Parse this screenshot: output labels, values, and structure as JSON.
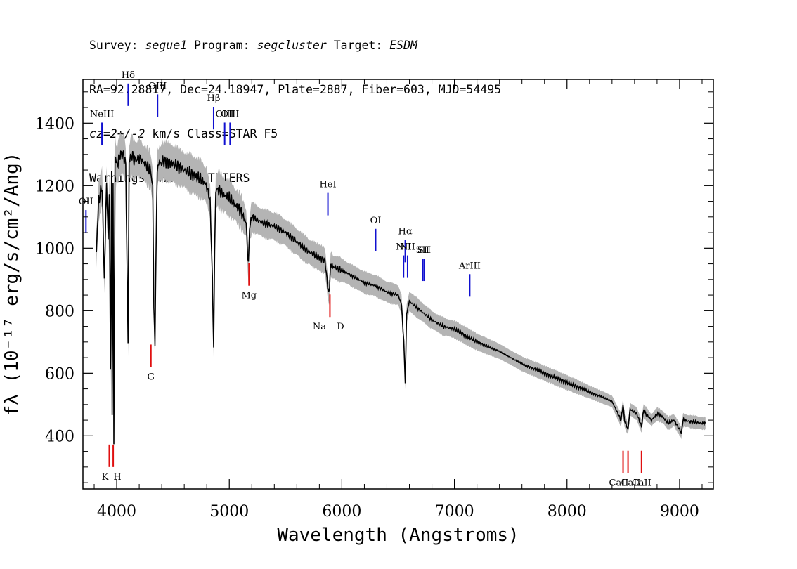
{
  "header": {
    "survey_label": "Survey:",
    "survey": "segue1",
    "program_label": "Program:",
    "program": "segcluster",
    "target_label": "Target:",
    "target": "ESDM",
    "line2": "RA=92.28817, Dec=24.18947, Plate=2887, Fiber=603, MJD=54495",
    "line3_italic": "cz=2+/-2",
    "line3_rest": " km/s Class=STAR F5",
    "line4": "Warnings: MANY_OUTLIERS"
  },
  "chart_data": {
    "type": "line",
    "xlabel": "Wavelength (Angstroms)",
    "ylabel": "fλ (10⁻¹⁷ erg/s/cm²/Ang)",
    "xlim": [
      3700,
      9300
    ],
    "ylim": [
      230,
      1540
    ],
    "x_ticks": [
      4000,
      5000,
      6000,
      7000,
      8000,
      9000
    ],
    "y_ticks": [
      400,
      600,
      800,
      1000,
      1200,
      1400
    ],
    "grid": false,
    "colors": {
      "spectrum": "#000000",
      "error_band": "#b4b4b4",
      "emission_lines": "#1010d0",
      "absorption_lines": "#e01010"
    },
    "series": [
      {
        "x": [
          3820,
          3840,
          3870,
          3890,
          3910,
          3925,
          3935,
          3945,
          3955,
          3960,
          3968,
          3975,
          3985,
          4000,
          4030,
          4060,
          4080,
          4090,
          4101,
          4110,
          4130,
          4160,
          4200,
          4250,
          4300,
          4320,
          4330,
          4340,
          4350,
          4360,
          4380,
          4420,
          4500,
          4600,
          4700,
          4750,
          4800,
          4830,
          4850,
          4861,
          4870,
          4880,
          4900,
          4950,
          5000,
          5050,
          5100,
          5150,
          5170,
          5180,
          5200,
          5300,
          5400,
          5500,
          5600,
          5700,
          5800,
          5850,
          5880,
          5890,
          5900,
          5920,
          6000,
          6100,
          6200,
          6300,
          6400,
          6500,
          6530,
          6550,
          6563,
          6575,
          6600,
          6700,
          6800,
          6900,
          7000,
          7200,
          7400,
          7600,
          7800,
          8000,
          8200,
          8400,
          8480,
          8498,
          8510,
          8542,
          8560,
          8620,
          8662,
          8680,
          8750,
          8800,
          8850,
          8900,
          8950,
          9000,
          9015,
          9030,
          9100,
          9200,
          9230
        ],
        "values": [
          1000,
          1150,
          1200,
          900,
          1210,
          1050,
          1180,
          600,
          1230,
          470,
          1200,
          380,
          1300,
          1260,
          1300,
          1300,
          1270,
          1000,
          690,
          1270,
          1300,
          1280,
          1290,
          1270,
          1250,
          1200,
          800,
          680,
          1010,
          1260,
          1270,
          1280,
          1270,
          1250,
          1230,
          1220,
          1200,
          1150,
          900,
          690,
          1000,
          1180,
          1190,
          1170,
          1160,
          1140,
          1120,
          1080,
          940,
          1060,
          1100,
          1080,
          1070,
          1050,
          1020,
          990,
          970,
          960,
          860,
          860,
          950,
          940,
          930,
          910,
          890,
          880,
          860,
          850,
          820,
          700,
          570,
          790,
          830,
          800,
          770,
          750,
          740,
          700,
          670,
          630,
          600,
          570,
          540,
          510,
          450,
          500,
          450,
          420,
          485,
          470,
          430,
          480,
          450,
          470,
          460,
          440,
          450,
          420,
          410,
          450,
          445,
          440,
          440
        ],
        "err_lo": [
          950,
          1100,
          1150,
          860,
          1160,
          1005,
          1130,
          570,
          1180,
          450,
          1150,
          365,
          1245,
          1210,
          1245,
          1245,
          1220,
          960,
          660,
          1220,
          1245,
          1230,
          1240,
          1220,
          1200,
          1150,
          770,
          650,
          965,
          1210,
          1220,
          1230,
          1220,
          1200,
          1180,
          1170,
          1150,
          1105,
          865,
          660,
          960,
          1130,
          1140,
          1120,
          1115,
          1095,
          1075,
          1040,
          905,
          1020,
          1058,
          1040,
          1030,
          1012,
          982,
          953,
          935,
          925,
          830,
          830,
          916,
          906,
          897,
          877,
          857,
          848,
          829,
          820,
          790,
          675,
          550,
          762,
          800,
          772,
          744,
          724,
          715,
          676,
          647,
          608,
          579,
          550,
          522,
          492,
          432,
          482,
          432,
          402,
          466,
          452,
          413,
          461,
          432,
          452,
          442,
          422,
          432,
          403,
          393,
          432,
          427,
          422,
          422
        ],
        "err_hi": [
          1050,
          1200,
          1250,
          940,
          1260,
          1095,
          1230,
          630,
          1280,
          490,
          1250,
          395,
          1355,
          1310,
          1355,
          1355,
          1320,
          1040,
          720,
          1320,
          1355,
          1330,
          1340,
          1320,
          1300,
          1250,
          830,
          710,
          1055,
          1310,
          1320,
          1330,
          1320,
          1300,
          1280,
          1270,
          1250,
          1195,
          935,
          720,
          1040,
          1230,
          1240,
          1220,
          1205,
          1185,
          1165,
          1120,
          975,
          1100,
          1142,
          1120,
          1110,
          1088,
          1058,
          1027,
          1005,
          995,
          890,
          890,
          984,
          974,
          963,
          943,
          923,
          912,
          891,
          880,
          850,
          725,
          590,
          818,
          860,
          828,
          796,
          776,
          765,
          724,
          693,
          652,
          621,
          590,
          558,
          528,
          468,
          518,
          468,
          438,
          504,
          488,
          447,
          499,
          468,
          488,
          478,
          458,
          468,
          437,
          427,
          468,
          463,
          458,
          458
        ]
      }
    ],
    "emission_lines": [
      {
        "label": "OII",
        "wave": 3727
      },
      {
        "label": "NeIII",
        "wave": 3869
      },
      {
        "label": "Hδ",
        "wave": 4102
      },
      {
        "label": "OIII",
        "wave": 4363
      },
      {
        "label": "Hβ",
        "wave": 4861
      },
      {
        "label": "OIII",
        "wave": 4959
      },
      {
        "label": "OIII",
        "wave": 5007
      },
      {
        "label": "HeI",
        "wave": 5876
      },
      {
        "label": "OI",
        "wave": 6300
      },
      {
        "label": "NII",
        "wave": 6548
      },
      {
        "label": "Hα",
        "wave": 6563
      },
      {
        "label": "NII",
        "wave": 6584
      },
      {
        "label": "SII",
        "wave": 6717
      },
      {
        "label": "SII",
        "wave": 6731
      },
      {
        "label": "ArIII",
        "wave": 7136
      }
    ],
    "absorption_lines": [
      {
        "label": "K",
        "wave": 3934
      },
      {
        "label": "H",
        "wave": 3969
      },
      {
        "label": "G",
        "wave": 4304
      },
      {
        "label": "Mg",
        "wave": 5175
      },
      {
        "label": "Na",
        "wave": 5894
      },
      {
        "label": "D",
        "wave": 5894
      },
      {
        "label": "CaII",
        "wave": 8498
      },
      {
        "label": "CaII",
        "wave": 8542
      },
      {
        "label": "CaII",
        "wave": 8662
      }
    ]
  }
}
